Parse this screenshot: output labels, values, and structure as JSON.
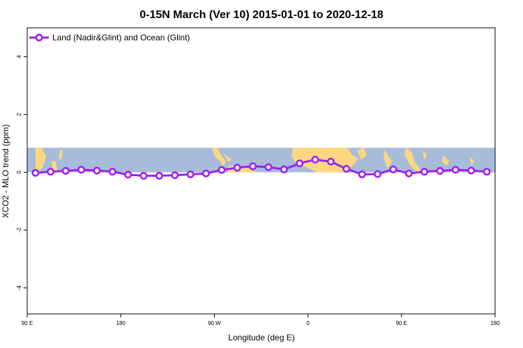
{
  "chart_data": {
    "type": "line",
    "title": "0-15N March (Ver 10)   2015-01-01 to 2020-12-18",
    "xlabel": "Longitude (deg E)",
    "ylabel": "XCO2 - MLO trend (ppm)",
    "xlim": [
      90,
      540
    ],
    "ylim": [
      -4.9,
      5.0
    ],
    "x_ticks": [
      {
        "value": 90,
        "label": "90 E"
      },
      {
        "value": 180,
        "label": "180"
      },
      {
        "value": 270,
        "label": "90 W"
      },
      {
        "value": 360,
        "label": "0"
      },
      {
        "value": 450,
        "label": "90 E"
      },
      {
        "value": 540,
        "label": "180"
      }
    ],
    "y_ticks": [
      {
        "value": -4,
        "label": "-4"
      },
      {
        "value": -2,
        "label": "-2"
      },
      {
        "value": 0,
        "label": "0"
      },
      {
        "value": 2,
        "label": "2"
      },
      {
        "value": 4,
        "label": "4"
      }
    ],
    "legend_position": "top-left",
    "grid": false,
    "background_map": {
      "description": "world map strip 0-15N",
      "ocean_color": "#a7bcd9",
      "land_color": "#fcd77f",
      "y_range": [
        0,
        0.85
      ]
    },
    "series": [
      {
        "name": "Land (Nadir&Glint) and Ocean (Glint)",
        "color": "#a020f0",
        "x": [
          98,
          112.5,
          127,
          142,
          157,
          172,
          187,
          202,
          217,
          232,
          247,
          262,
          277,
          292,
          307,
          322,
          337,
          352,
          367,
          382,
          397,
          412,
          427,
          442,
          457,
          472,
          487,
          502,
          517,
          532
        ],
        "y": [
          -0.02,
          0.02,
          0.05,
          0.09,
          0.06,
          0.02,
          -0.08,
          -0.12,
          -0.12,
          -0.1,
          -0.07,
          -0.04,
          0.08,
          0.16,
          0.21,
          0.18,
          0.1,
          0.31,
          0.44,
          0.37,
          0.12,
          -0.07,
          -0.06,
          0.1,
          -0.04,
          0.02,
          0.05,
          0.09,
          0.06,
          0.02
        ]
      }
    ]
  }
}
